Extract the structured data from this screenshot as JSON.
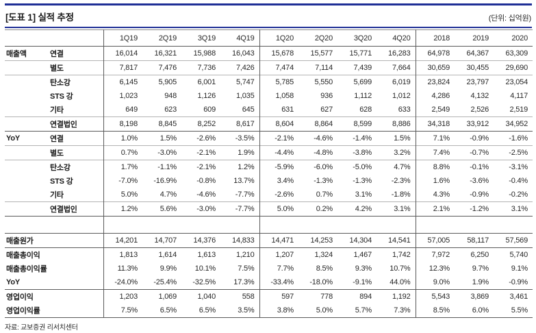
{
  "title": "[도표 1] 실적 추정",
  "unit_label": "(단위: 십억원)",
  "source": "자료: 교보증권 리서치센터",
  "colors": {
    "accent_line": "#1f2f96",
    "section_line": "#595959",
    "row_line": "#b3b3b3",
    "text": "#262626"
  },
  "table": {
    "column_headers": [
      "1Q19",
      "2Q19",
      "3Q19",
      "4Q19",
      "1Q20",
      "2Q20",
      "3Q20",
      "4Q20",
      "2018",
      "2019",
      "2020"
    ],
    "rows": [
      {
        "group": "매출액",
        "label": "연결",
        "values": [
          "16,014",
          "16,321",
          "15,988",
          "16,043",
          "15,678",
          "15,577",
          "15,771",
          "16,283",
          "64,978",
          "64,367",
          "63,309"
        ]
      },
      {
        "group": "",
        "label": "별도",
        "values": [
          "7,817",
          "7,476",
          "7,736",
          "7,426",
          "7,474",
          "7,114",
          "7,439",
          "7,664",
          "30,659",
          "30,455",
          "29,690"
        ]
      },
      {
        "group": "",
        "label": "탄소강",
        "values": [
          "6,145",
          "5,905",
          "6,001",
          "5,747",
          "5,785",
          "5,550",
          "5,699",
          "6,019",
          "23,824",
          "23,797",
          "23,054"
        ]
      },
      {
        "group": "",
        "label": "STS 강",
        "values": [
          "1,023",
          "948",
          "1,126",
          "1,035",
          "1,058",
          "936",
          "1,112",
          "1,012",
          "4,286",
          "4,132",
          "4,117"
        ]
      },
      {
        "group": "",
        "label": "기타",
        "values": [
          "649",
          "623",
          "609",
          "645",
          "631",
          "627",
          "628",
          "633",
          "2,549",
          "2,526",
          "2,519"
        ]
      },
      {
        "group": "",
        "label": "연결법인",
        "values": [
          "8,198",
          "8,845",
          "8,252",
          "8,617",
          "8,604",
          "8,864",
          "8,599",
          "8,886",
          "34,318",
          "33,912",
          "34,952"
        ]
      },
      {
        "group": "YoY",
        "label": "연결",
        "values": [
          "1.0%",
          "1.5%",
          "-2.6%",
          "-3.5%",
          "-2.1%",
          "-4.6%",
          "-1.4%",
          "1.5%",
          "7.1%",
          "-0.9%",
          "-1.6%"
        ]
      },
      {
        "group": "",
        "label": "별도",
        "values": [
          "0.7%",
          "-3.0%",
          "-2.1%",
          "1.9%",
          "-4.4%",
          "-4.8%",
          "-3.8%",
          "3.2%",
          "7.4%",
          "-0.7%",
          "-2.5%"
        ]
      },
      {
        "group": "",
        "label": "탄소강",
        "values": [
          "1.7%",
          "-1.1%",
          "-2.1%",
          "1.2%",
          "-5.9%",
          "-6.0%",
          "-5.0%",
          "4.7%",
          "8.8%",
          "-0.1%",
          "-3.1%"
        ]
      },
      {
        "group": "",
        "label": "STS 강",
        "values": [
          "-7.0%",
          "-16.9%",
          "-0.8%",
          "13.7%",
          "3.4%",
          "-1.3%",
          "-1.3%",
          "-2.3%",
          "1.6%",
          "-3.6%",
          "-0.4%"
        ]
      },
      {
        "group": "",
        "label": "기타",
        "values": [
          "5.0%",
          "4.7%",
          "-4.6%",
          "-7.7%",
          "-2.6%",
          "0.7%",
          "3.1%",
          "-1.8%",
          "4.3%",
          "-0.9%",
          "-0.2%"
        ]
      },
      {
        "group": "",
        "label": "연결법인",
        "values": [
          "1.2%",
          "5.6%",
          "-3.0%",
          "-7.7%",
          "5.0%",
          "0.2%",
          "4.2%",
          "3.1%",
          "2.1%",
          "-1.2%",
          "3.1%"
        ]
      },
      {
        "group": "",
        "label": "매출원가",
        "wide": true,
        "values": [
          "14,201",
          "14,707",
          "14,376",
          "14,833",
          "14,471",
          "14,253",
          "14,304",
          "14,541",
          "57,005",
          "58,117",
          "57,569"
        ]
      },
      {
        "group": "",
        "label": "매출총이익",
        "wide": true,
        "values": [
          "1,813",
          "1,614",
          "1,613",
          "1,210",
          "1,207",
          "1,324",
          "1,467",
          "1,742",
          "7,972",
          "6,250",
          "5,740"
        ]
      },
      {
        "group": "",
        "label": "매출총이익률",
        "wide": true,
        "values": [
          "11.3%",
          "9.9%",
          "10.1%",
          "7.5%",
          "7.7%",
          "8.5%",
          "9.3%",
          "10.7%",
          "12.3%",
          "9.7%",
          "9.1%"
        ]
      },
      {
        "group": "",
        "label": "YoY",
        "wide": true,
        "values": [
          "-24.0%",
          "-25.4%",
          "-32.5%",
          "17.3%",
          "-33.4%",
          "-18.0%",
          "-9.1%",
          "44.0%",
          "9.0%",
          "1.9%",
          "-0.9%"
        ]
      },
      {
        "group": "",
        "label": "영업이익",
        "wide": true,
        "values": [
          "1,203",
          "1,069",
          "1,040",
          "558",
          "597",
          "778",
          "894",
          "1,192",
          "5,543",
          "3,869",
          "3,461"
        ]
      },
      {
        "group": "",
        "label": "영업이익률",
        "wide": true,
        "values": [
          "7.5%",
          "6.5%",
          "6.5%",
          "3.5%",
          "3.8%",
          "5.0%",
          "5.7%",
          "7.3%",
          "8.5%",
          "6.0%",
          "5.5%"
        ]
      }
    ]
  }
}
